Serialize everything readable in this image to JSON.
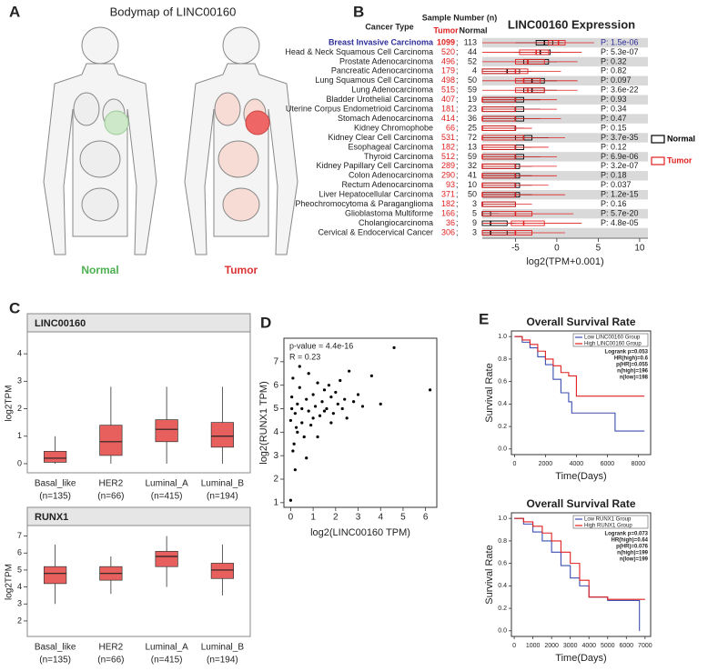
{
  "panel_labels": [
    "A",
    "B",
    "C",
    "D",
    "E"
  ],
  "bodymap": {
    "title": "Bodymap of LINC00160",
    "labels": [
      "Normal",
      "Tumor"
    ]
  },
  "chart_data": [
    {
      "type": "boxtable",
      "title": "LINC00160 Expression",
      "category_header": "Cancer Type",
      "count_header": "Sample Number (n)",
      "count_names": [
        "Tumor",
        "Normal"
      ],
      "separator": ";",
      "highlight": 0,
      "highlight_color": "#2e2e9a",
      "categories": [
        "Breast Invasive Carcinoma",
        "Head & Neck Squamous Cell Carcinoma",
        "Prostate Adenocarcinoma",
        "Pancreatic Adenocarcinoma",
        "Lung Squamous Cell Carcinoma",
        "Lung Adenocarcinoma",
        "Bladder Urothelial Carcinoma",
        "Uterine Corpus Endometrioid Carcinoma",
        "Stomach Adenocarcinoma",
        "Kidney Chromophobe",
        "Kidney Clear Cell Carcinoma",
        "Esophageal Carcinoma",
        "Thyroid Carcinoma",
        "Kidney Papillary Cell Carcinoma",
        "Colon Adenocarcinoma",
        "Rectum Adenocarcinoma",
        "Liver Hepatocellular Carcinoma",
        "Pheochromocytoma & Paraganglioma",
        "Glioblastoma Multiforme",
        "Cholangiocarcinoma",
        "Cervical & Endocervical Cancer"
      ],
      "tumor_n": [
        1099,
        520,
        496,
        179,
        498,
        515,
        407,
        181,
        414,
        66,
        531,
        182,
        512,
        289,
        290,
        93,
        371,
        182,
        166,
        36,
        306
      ],
      "normal_n": [
        113,
        44,
        52,
        4,
        50,
        59,
        19,
        23,
        36,
        25,
        72,
        13,
        59,
        32,
        41,
        10,
        50,
        3,
        5,
        9,
        3
      ],
      "p_labels": [
        "P: 1.5e-06",
        "P: 5.3e-07",
        "P: 0.32",
        "P: 0.82",
        "P: 0.097",
        "P: 3.6e-22",
        "P: 0.93",
        "P: 0.34",
        "P: 0.47",
        "P: 0.15",
        "P: 3.7e-35",
        "P: 0.12",
        "P: 6.9e-06",
        "P: 3.2e-07",
        "P: 0.18",
        "P: 0.037",
        "P: 1.2e-15",
        "P: 0.16",
        "P: 5.7e-20",
        "P: 4.8e-05",
        null
      ],
      "series": [
        {
          "name": "Normal",
          "color": "#000000",
          "boxes": [
            [
              -5,
              -2.5,
              -1.5,
              -0.5,
              0.8
            ],
            [
              -5,
              -2.5,
              -2,
              -0.8,
              0.5
            ],
            [
              -5,
              -4,
              -3.5,
              -1,
              0
            ],
            [
              -9,
              -9,
              -6,
              -4.5,
              -3
            ],
            [
              -5,
              -4,
              -3,
              -1.5,
              0
            ],
            [
              -5,
              -4,
              -3,
              -1.5,
              0
            ],
            [
              -9,
              -9,
              -5,
              -4,
              -2
            ],
            [
              -9,
              -9,
              -5,
              -4,
              -2
            ],
            [
              -9,
              -9,
              -5,
              -4,
              -2
            ],
            [
              -9,
              -9,
              -5,
              -5,
              -4
            ],
            [
              -9,
              -5,
              -4,
              -3,
              -1
            ],
            [
              -9,
              -9,
              -5,
              -4,
              -3
            ],
            [
              -9,
              -9,
              -5,
              -4,
              -2
            ],
            [
              -9,
              -9,
              -5,
              -4.5,
              -3
            ],
            [
              -9,
              -9,
              -5,
              -4.5,
              -3
            ],
            [
              -9,
              -9,
              -5,
              -4.5,
              -3
            ],
            [
              -9,
              -9,
              -5,
              -4.5,
              -3
            ],
            [
              -9,
              -9,
              -9,
              -5,
              -5
            ],
            [
              -9,
              -9,
              -9,
              -8,
              -7
            ],
            [
              -9,
              -9,
              -8,
              -6,
              -5
            ],
            [
              -9,
              -9,
              -8,
              -6,
              -5
            ]
          ]
        },
        {
          "name": "Tumor",
          "color": "#e02020",
          "boxes": [
            [
              -9,
              -1,
              0.2,
              1,
              4.5
            ],
            [
              -9,
              -4.5,
              -2.5,
              -1,
              3
            ],
            [
              -9,
              -5,
              -3.5,
              -1.5,
              2.5
            ],
            [
              -9,
              -9,
              -5,
              -3.5,
              0.5
            ],
            [
              -9,
              -5,
              -4,
              -2,
              2.5
            ],
            [
              -9,
              -5,
              -3.5,
              -1.5,
              2.5
            ],
            [
              -9,
              -9,
              -9,
              -5,
              0
            ],
            [
              -9,
              -9,
              -9,
              -5,
              0
            ],
            [
              -9,
              -9,
              -9,
              -5,
              0.5
            ],
            [
              -9,
              -9,
              -9,
              -5,
              -3
            ],
            [
              -9,
              -9,
              -9,
              -4,
              1
            ],
            [
              -9,
              -9,
              -9,
              -5,
              -1
            ],
            [
              -9,
              -9,
              -9,
              -5,
              0
            ],
            [
              -9,
              -9,
              -9,
              -5,
              0
            ],
            [
              -9,
              -9,
              -9,
              -5,
              0
            ],
            [
              -9,
              -9,
              -9,
              -5,
              -1
            ],
            [
              -9,
              -9,
              -9,
              -5,
              1
            ],
            [
              -9,
              -9,
              -9,
              -5,
              -3
            ],
            [
              -9,
              -9,
              -5,
              -3,
              2
            ],
            [
              -9,
              -5.5,
              -4,
              -1.5,
              3
            ],
            [
              -9,
              -9,
              -5,
              -3,
              1
            ]
          ]
        }
      ],
      "xlabel": "log2(TPM+0.001)",
      "xlim": [
        -9,
        11
      ],
      "xticks": [
        -5,
        0,
        5,
        10
      ]
    },
    {
      "type": "boxplot",
      "title": "LINC00160",
      "ylabel": "log2TPM",
      "color": "#e8605e",
      "categories": [
        "Basal_like",
        "HER2",
        "Luminal_A",
        "Luminal_B"
      ],
      "n_labels": [
        "(n=135)",
        "(n=66)",
        "(n=415)",
        "(n=194)"
      ],
      "boxes": [
        [
          0,
          0.05,
          0.2,
          0.45,
          1
        ],
        [
          0,
          0.3,
          0.8,
          1.4,
          2.8
        ],
        [
          0,
          0.8,
          1.25,
          1.6,
          2.8
        ],
        [
          0,
          0.6,
          1.0,
          1.5,
          2.8
        ]
      ],
      "ylim": [
        -0.2,
        4.6
      ],
      "yticks": [
        0,
        1,
        2,
        3,
        4
      ]
    },
    {
      "type": "boxplot",
      "title": "RUNX1",
      "ylabel": "log2TPM",
      "color": "#e8605e",
      "categories": [
        "Basal_like",
        "HER2",
        "Luminal_A",
        "Luminal_B"
      ],
      "n_labels": [
        "(n=135)",
        "(n=66)",
        "(n=415)",
        "(n=194)"
      ],
      "boxes": [
        [
          3,
          4.2,
          4.8,
          5.2,
          6.5
        ],
        [
          3.6,
          4.4,
          4.8,
          5.2,
          5.8
        ],
        [
          4,
          5.2,
          5.8,
          6.1,
          7
        ],
        [
          3.5,
          4.5,
          5,
          5.4,
          6.5
        ]
      ],
      "ylim": [
        1.3,
        7.3
      ],
      "yticks": [
        2,
        3,
        4,
        5,
        6,
        7
      ]
    },
    {
      "type": "scatter",
      "annotations": [
        "p-value = 4.4e-16",
        "R = 0.23"
      ],
      "xlabel": "log2(LINC00160 TPM)",
      "ylabel": "log2(RUNX1 TPM)",
      "color": "#000000",
      "x": [
        0,
        0,
        0.05,
        0.1,
        0.1,
        0.2,
        0.2,
        0.3,
        0.3,
        0.4,
        0.5,
        0.5,
        0.6,
        0.7,
        0.8,
        0.8,
        0.9,
        1.0,
        1.0,
        1.1,
        1.2,
        1.3,
        1.4,
        1.5,
        1.5,
        1.6,
        1.7,
        1.8,
        1.9,
        2.0,
        2.1,
        2.2,
        2.3,
        2.4,
        2.5,
        2.6,
        2.8,
        3.0,
        3.2,
        3.6,
        4.0,
        4.6,
        6.2,
        0.15,
        0.4,
        0.7,
        1.2,
        1.8,
        0.05,
        0.25
      ],
      "y": [
        4.5,
        1.1,
        5.5,
        3.2,
        6.3,
        4.8,
        2.4,
        5.2,
        4.0,
        5.9,
        4.4,
        5.0,
        3.8,
        5.4,
        4.9,
        6.5,
        4.3,
        5.6,
        4.6,
        5.1,
        6.1,
        4.7,
        5.3,
        5.8,
        4.9,
        5.0,
        6.0,
        5.5,
        4.8,
        5.7,
        5.2,
        6.2,
        5.0,
        5.4,
        4.6,
        6.6,
        5.3,
        5.6,
        5.1,
        6.4,
        5.2,
        7.6,
        5.8,
        3.5,
        6.8,
        2.9,
        3.8,
        4.4,
        5.0,
        4.2
      ],
      "xlim": [
        -0.3,
        6.5
      ],
      "ylim": [
        0.8,
        8
      ],
      "xticks": [
        0,
        1,
        2,
        3,
        4,
        5,
        6
      ],
      "yticks": [
        1,
        2,
        3,
        4,
        5,
        6,
        7
      ]
    },
    {
      "type": "line",
      "title": "Overall Survival Rate",
      "xlabel": "Time(Days)",
      "ylabel": "Survival Rate",
      "stats": [
        "Logrank p=0.053",
        "HR(high)=0.6",
        "p(HR)=0.055",
        "n(high)=196",
        "n(low)=198"
      ],
      "series": [
        {
          "name": "Low LINC00160 Group",
          "color": "#3b4fb0",
          "x": [
            0,
            500,
            1000,
            1500,
            2000,
            2500,
            3000,
            3500,
            3700,
            4000,
            6500,
            8400
          ],
          "y": [
            1,
            0.95,
            0.9,
            0.82,
            0.75,
            0.62,
            0.5,
            0.42,
            0.32,
            0.32,
            0.16,
            0.16
          ]
        },
        {
          "name": "High LINC00160 Group",
          "color": "#e02020",
          "x": [
            0,
            500,
            1000,
            1500,
            2000,
            2500,
            3000,
            3500,
            4000,
            8400
          ],
          "y": [
            1,
            0.97,
            0.93,
            0.87,
            0.8,
            0.74,
            0.68,
            0.65,
            0.47,
            0.47
          ]
        }
      ],
      "xlim": [
        -200,
        8800
      ],
      "ylim": [
        -0.05,
        1.05
      ],
      "xticks": [
        0,
        2000,
        4000,
        6000,
        8000
      ],
      "yticks": [
        {
          "value": 0,
          "label": "0.0"
        },
        0.2,
        0.4,
        0.6,
        0.8,
        {
          "value": 1,
          "label": "1.0"
        }
      ]
    },
    {
      "type": "line",
      "title": "Overall Survival Rate",
      "xlabel": "Time(Days)",
      "ylabel": "Survival Rate",
      "stats": [
        "Logrank p=0.073",
        "HR(high)=0.64",
        "p(HR)=0.076",
        "n(high)=199",
        "n(low)=199"
      ],
      "series": [
        {
          "name": "Low RUNX1 Group",
          "color": "#3b4fb0",
          "x": [
            0,
            500,
            1000,
            1500,
            2000,
            2500,
            3000,
            3500,
            4000,
            5000,
            6500,
            6700
          ],
          "y": [
            1,
            0.95,
            0.88,
            0.8,
            0.7,
            0.58,
            0.47,
            0.4,
            0.3,
            0.27,
            0.27,
            0
          ]
        },
        {
          "name": "High RUNX1 Group",
          "color": "#e02020",
          "x": [
            0,
            500,
            1000,
            1500,
            2000,
            2500,
            3000,
            3500,
            4000,
            5000,
            6000,
            7000
          ],
          "y": [
            1,
            0.97,
            0.93,
            0.87,
            0.8,
            0.7,
            0.6,
            0.45,
            0.3,
            0.28,
            0.28,
            0.28
          ]
        }
      ],
      "xlim": [
        -150,
        7300
      ],
      "ylim": [
        -0.05,
        1.05
      ],
      "xticks": [
        0,
        1000,
        2000,
        3000,
        4000,
        5000,
        6000,
        7000
      ],
      "yticks": [
        {
          "value": 0,
          "label": "0.0"
        },
        0.2,
        0.4,
        0.6,
        0.8,
        {
          "value": 1,
          "label": "1.0"
        }
      ]
    }
  ]
}
